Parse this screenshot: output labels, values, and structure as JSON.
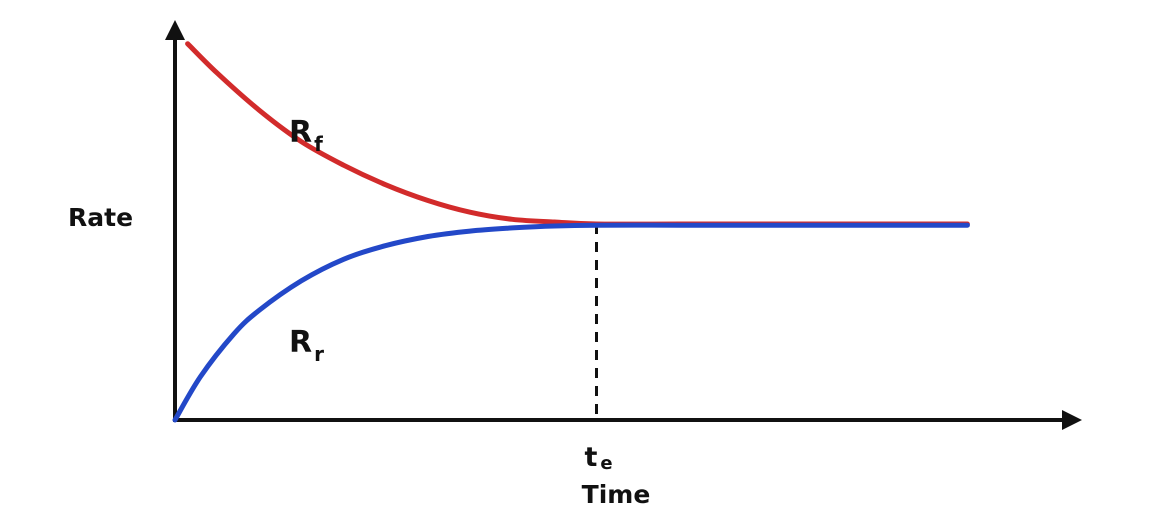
{
  "chart_data": {
    "type": "line",
    "title": "",
    "xlabel": "Time",
    "ylabel": "Rate",
    "grid": false,
    "legend": "none",
    "x_ticks": [
      {
        "x": 5,
        "label_main": "t",
        "label_sub": "e"
      }
    ],
    "equilibrium": {
      "x": 5,
      "y": 5,
      "style": "dashed"
    },
    "xlim": [
      0,
      10
    ],
    "ylim": [
      0,
      10
    ],
    "series": [
      {
        "label_main": "R",
        "label_sub": "f",
        "color": "#d22b2b",
        "x": [
          0.15,
          0.5,
          1,
          1.5,
          2,
          2.5,
          3,
          3.5,
          4,
          4.5,
          5,
          6,
          7,
          8,
          9.4
        ],
        "y": [
          9.6,
          8.85,
          7.9,
          7.1,
          6.5,
          6.0,
          5.6,
          5.3,
          5.12,
          5.05,
          5.0,
          5.0,
          5.0,
          5.0,
          5.0
        ]
      },
      {
        "label_main": "R",
        "label_sub": "r",
        "color": "#2348c8",
        "x": [
          0,
          0.3,
          0.7,
          1,
          1.5,
          2,
          2.5,
          3,
          3.5,
          4,
          4.5,
          5,
          6,
          7,
          8,
          9.4
        ],
        "y": [
          0,
          1.1,
          2.2,
          2.8,
          3.55,
          4.1,
          4.45,
          4.68,
          4.82,
          4.9,
          4.95,
          4.97,
          4.97,
          4.97,
          4.97,
          4.97
        ]
      }
    ]
  }
}
